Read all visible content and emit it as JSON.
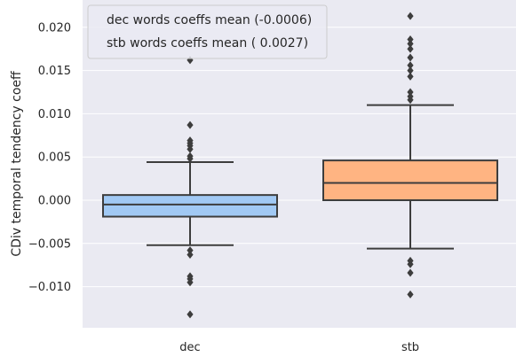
{
  "chart_data": {
    "type": "box",
    "ylabel": "CDiv temporal tendency coeff",
    "xlabel": "",
    "ylim": [
      -0.0145,
      0.0225
    ],
    "yticks": [
      -0.01,
      -0.005,
      0.0,
      0.005,
      0.01,
      0.015,
      0.02
    ],
    "ytick_labels": [
      "−0.010",
      "−0.005",
      "0.000",
      "0.005",
      "0.010",
      "0.015",
      "0.020"
    ],
    "grid": true,
    "legend_position": "top-left",
    "legend": [
      "dec words coeffs mean (-0.0006)",
      "stb  words coeffs mean ( 0.0027)"
    ],
    "categories": [
      "dec",
      "stb"
    ],
    "boxes": [
      {
        "category": "dec",
        "color": "#a1c9f4",
        "q1": -0.0019,
        "median": -0.0005,
        "q3": 0.0006,
        "whisker_low": -0.0052,
        "whisker_high": 0.0044,
        "outliers": [
          0.0162,
          0.0087,
          0.0069,
          0.0066,
          0.0063,
          0.0059,
          0.0051,
          0.0048,
          -0.0058,
          -0.0063,
          -0.0088,
          -0.0091,
          -0.0095,
          -0.0132
        ]
      },
      {
        "category": "stb",
        "color": "#ffb482",
        "q1": 0.0,
        "median": 0.002,
        "q3": 0.0046,
        "whisker_low": -0.0056,
        "whisker_high": 0.011,
        "outliers": [
          0.0213,
          0.0186,
          0.0181,
          0.0175,
          0.0165,
          0.0156,
          0.015,
          0.0143,
          0.0125,
          0.012,
          0.0116,
          -0.007,
          -0.0074,
          -0.0084,
          -0.0109
        ]
      }
    ]
  }
}
